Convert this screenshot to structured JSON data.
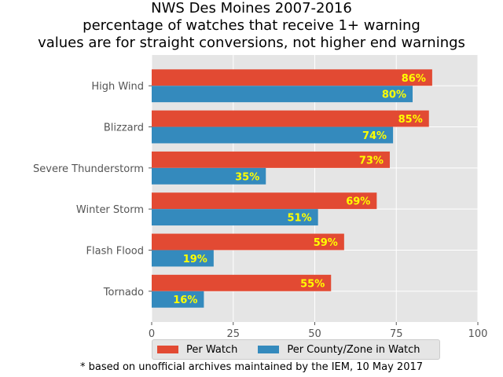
{
  "title": {
    "line1": "NWS Des Moines 2007-2016",
    "line2": "percentage of watches that receive 1+ warning",
    "line3": "values are for straight conversions, not higher end warnings"
  },
  "footnote": "* based on unofficial archives maintained by the IEM, 10 May 2017",
  "colors": {
    "per_watch": "#e24a33",
    "per_county": "#348abd",
    "plot_background": "#e5e5e5",
    "grid": "#ffffff",
    "bar_label": "#ffff00"
  },
  "chart_data": {
    "type": "bar",
    "orientation": "horizontal",
    "categories": [
      "High Wind",
      "Blizzard",
      "Severe Thunderstorm",
      "Winter Storm",
      "Flash Flood",
      "Tornado"
    ],
    "series": [
      {
        "name": "Per Watch",
        "values": [
          86,
          85,
          73,
          69,
          59,
          55
        ],
        "labels": [
          "86%",
          "85%",
          "73%",
          "69%",
          "59%",
          "55%"
        ]
      },
      {
        "name": "Per County/Zone in Watch",
        "values": [
          80,
          74,
          35,
          51,
          19,
          16
        ],
        "labels": [
          "80%",
          "74%",
          "35%",
          "51%",
          "19%",
          "16%"
        ]
      }
    ],
    "xlim": [
      0,
      100
    ],
    "xticks": [
      0,
      25,
      50,
      75,
      100
    ],
    "xtick_labels": [
      "0",
      "25",
      "50",
      "75",
      "100"
    ],
    "grid": true,
    "legend_position": "bottom"
  }
}
